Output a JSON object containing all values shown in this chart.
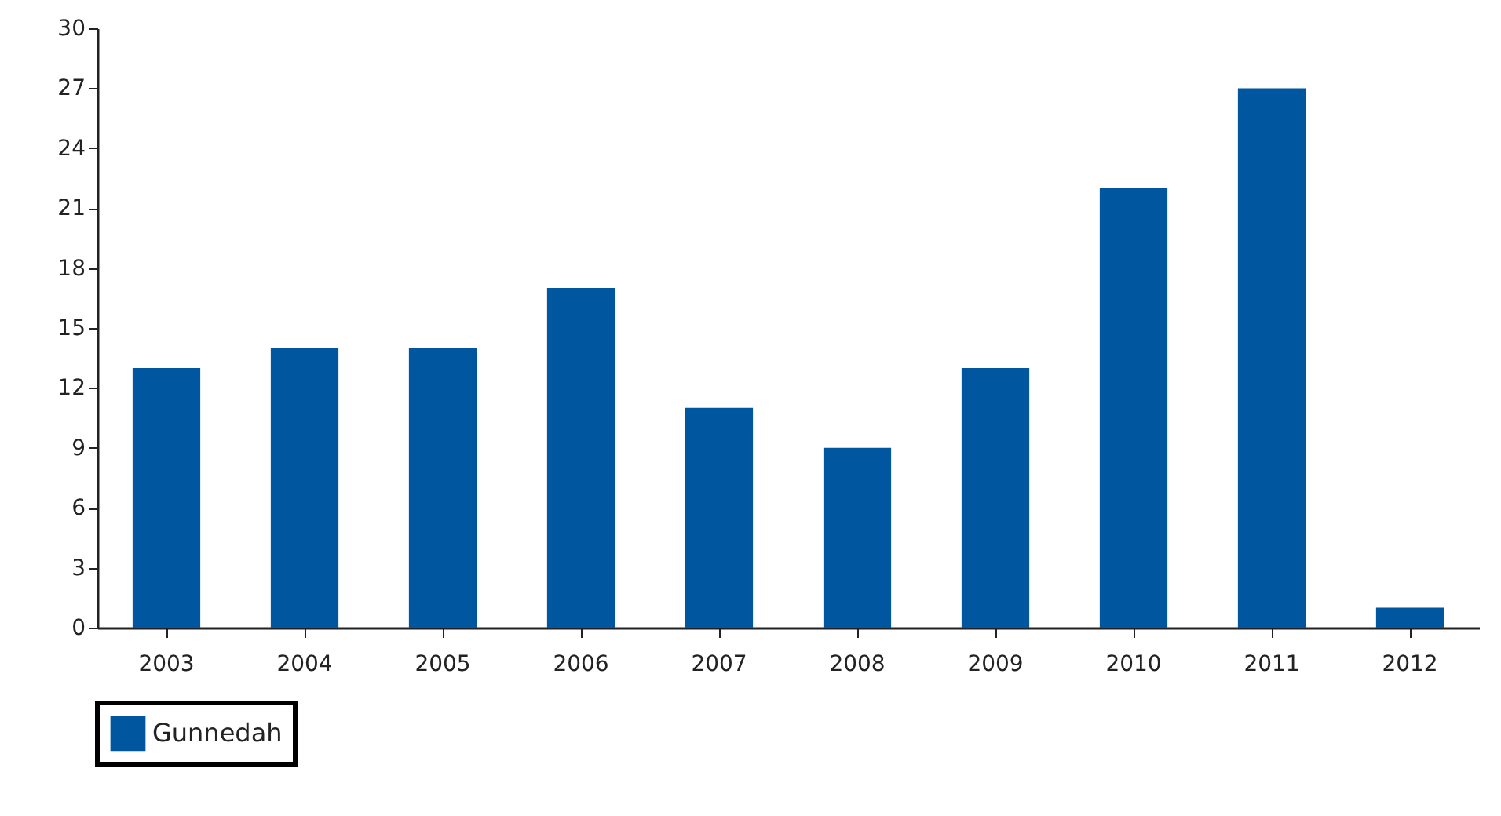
{
  "chart_data": {
    "type": "bar",
    "categories": [
      "2003",
      "2004",
      "2005",
      "2006",
      "2007",
      "2008",
      "2009",
      "2010",
      "2011",
      "2012"
    ],
    "series": [
      {
        "name": "Gunnedah",
        "color": "#0057a0",
        "values": [
          13,
          14,
          14,
          17,
          11,
          9,
          13,
          22,
          27,
          1
        ]
      }
    ],
    "ylim": [
      0,
      30
    ],
    "yticks": [
      0,
      3,
      6,
      9,
      12,
      15,
      18,
      21,
      24,
      27,
      30
    ],
    "grid": false,
    "legend": "bottom"
  }
}
